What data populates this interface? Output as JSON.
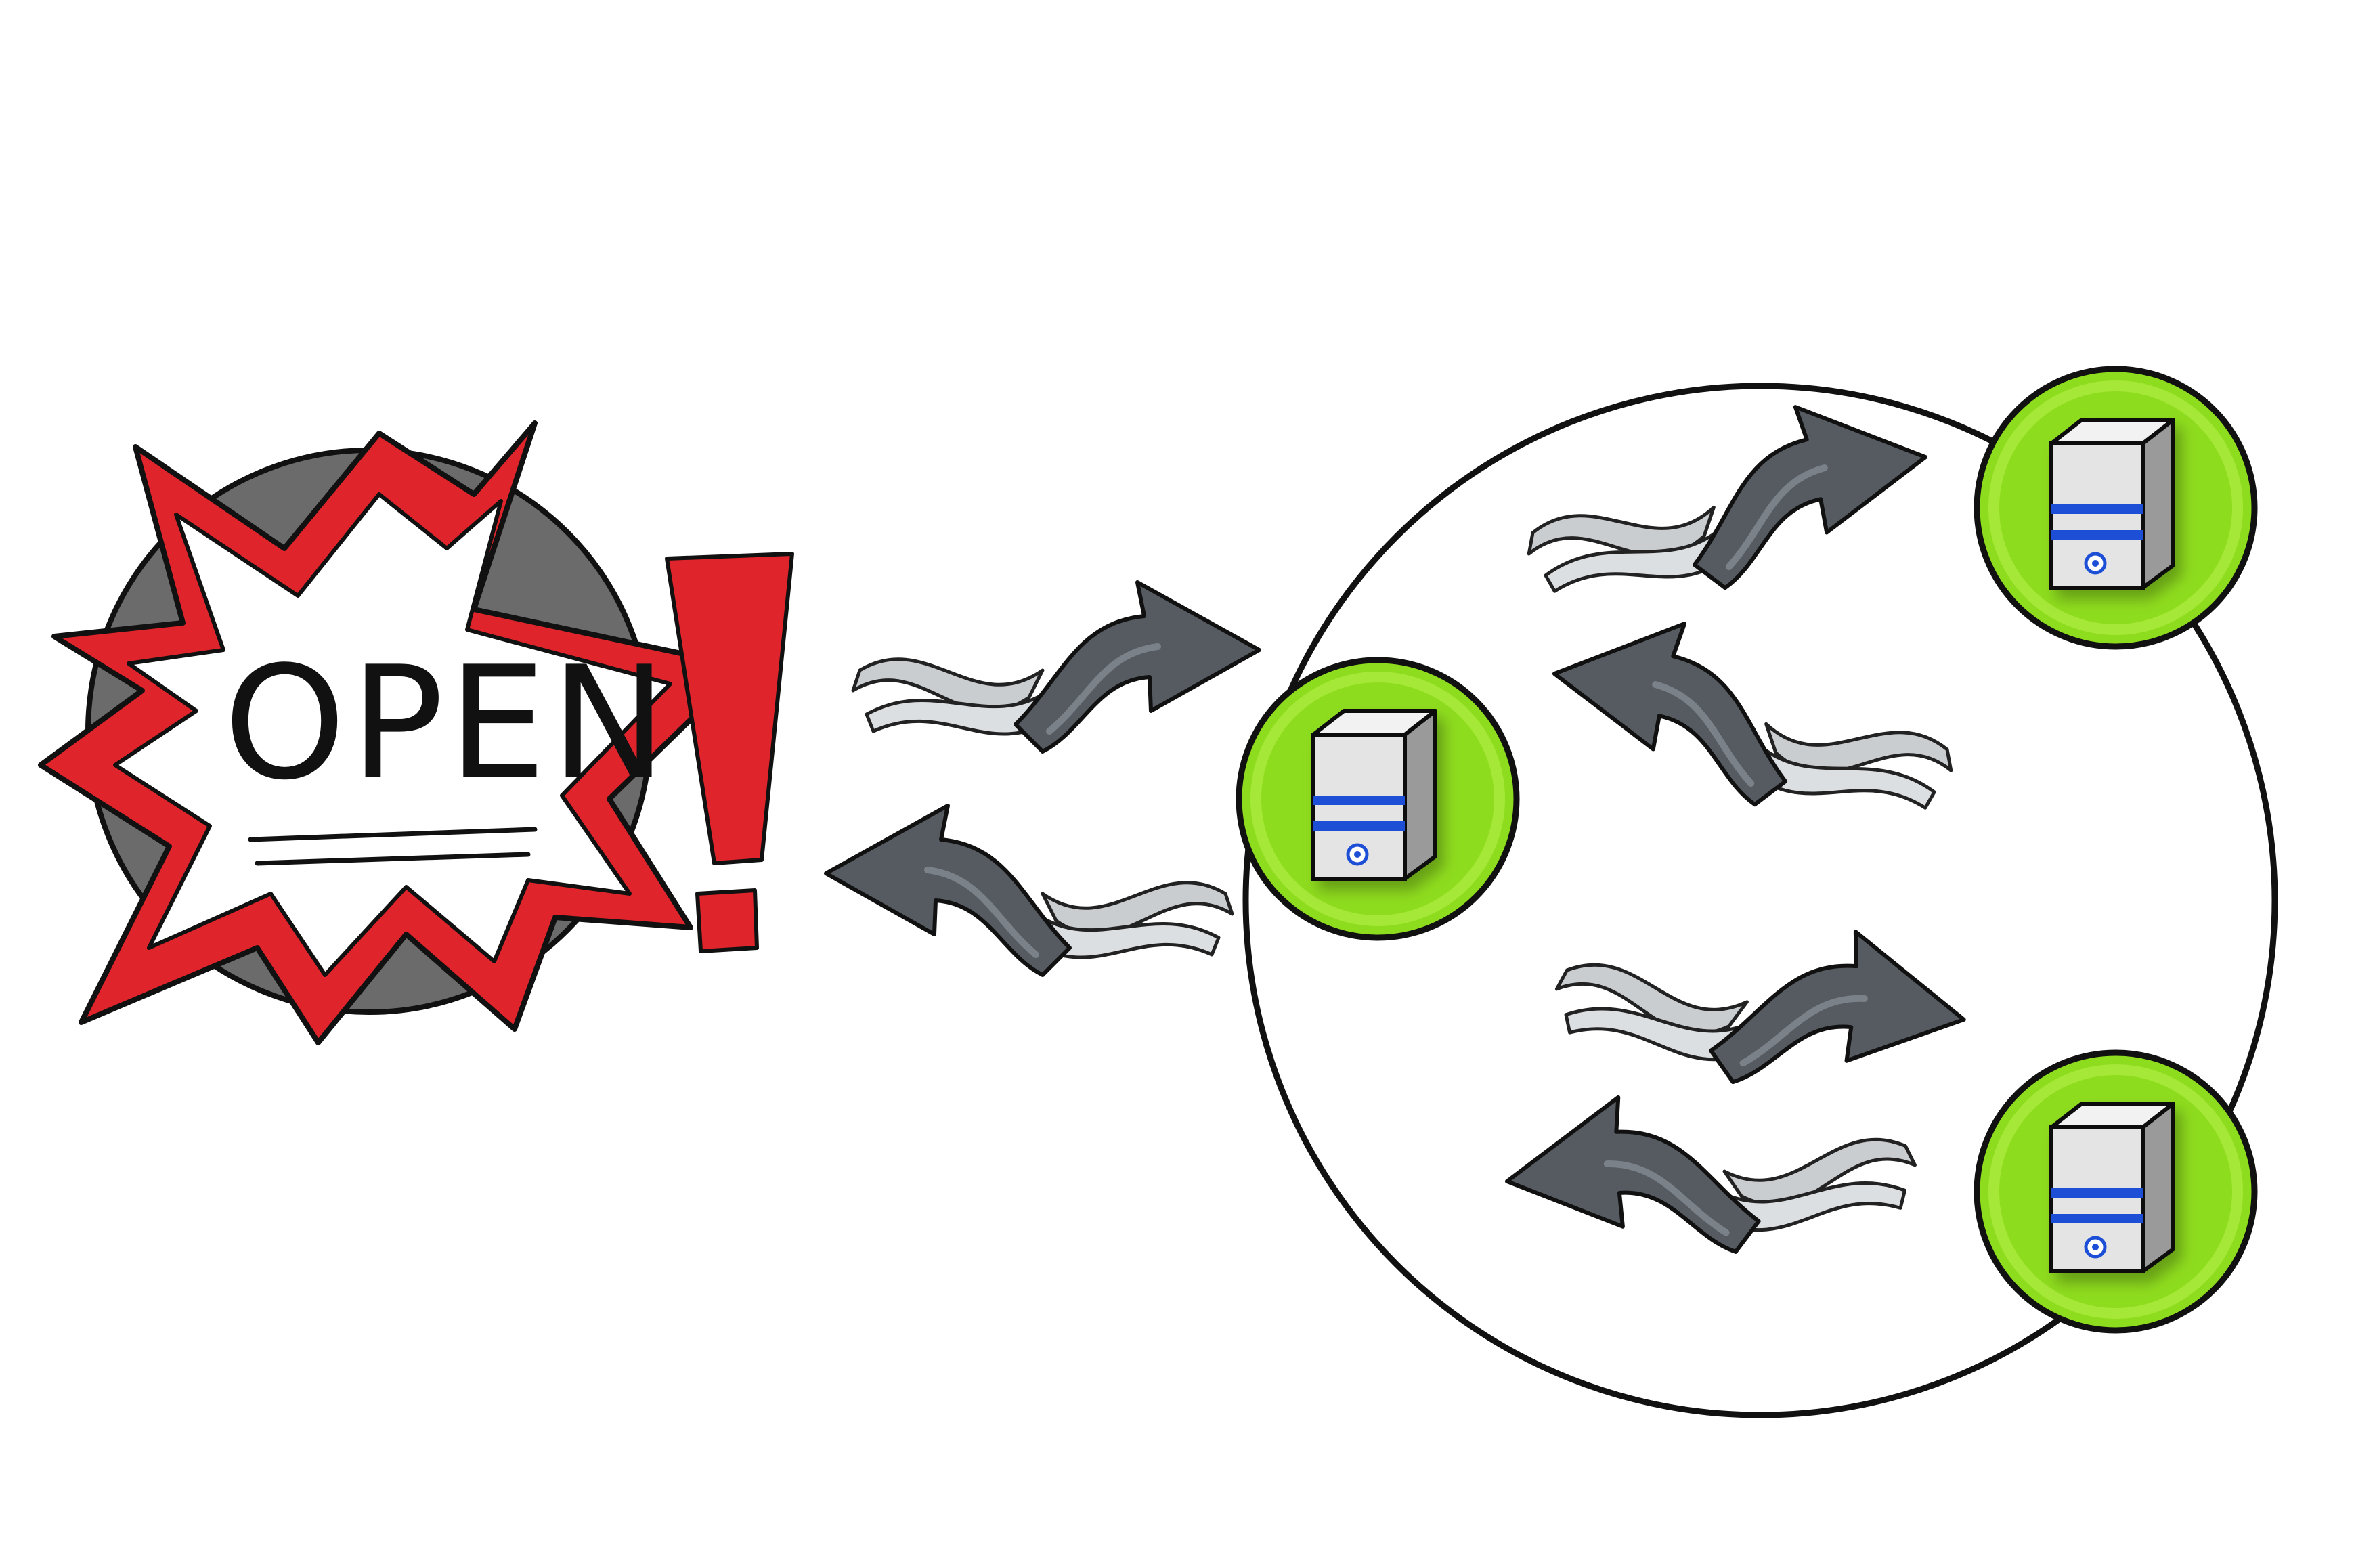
{
  "badge": {
    "text": "OPEN",
    "burst_color": "#e0242b",
    "disc_color": "#6b6b6b",
    "exclamation_color": "#e0242b"
  },
  "server": {
    "circle_color": "#8edc1e",
    "case_color": "#e4e4e4",
    "stripe_color": "#1f4fd6"
  },
  "arrow": {
    "head_color": "#555b61",
    "tail_color": "#c9cdd0"
  }
}
